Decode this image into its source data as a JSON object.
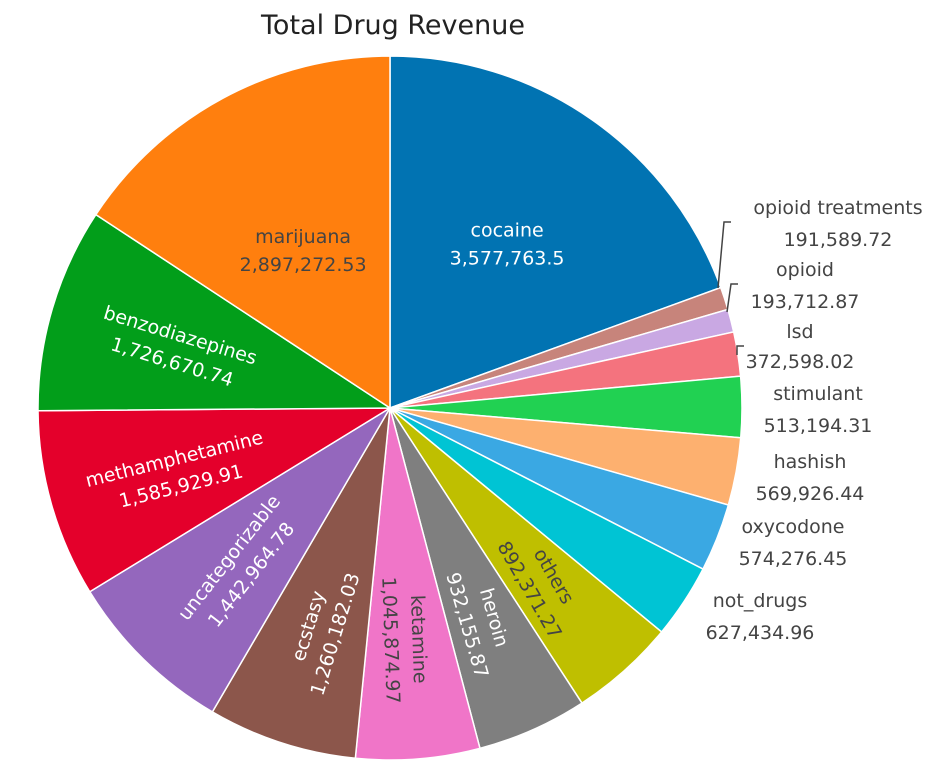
{
  "chart_data": {
    "type": "pie",
    "title": "Total Drug Revenue",
    "slices": [
      {
        "label": "cocaine",
        "value": 3577763.5,
        "value_text": "3,577,763.5",
        "color": "#0173b2",
        "text_color": "#ffffff"
      },
      {
        "label": "opioid treatments",
        "value": 191589.72,
        "value_text": "191,589.72",
        "color": "#c7847b",
        "text_color": "#444444"
      },
      {
        "label": "opioid",
        "value": 193712.87,
        "value_text": "193,712.87",
        "color": "#c9a8e3",
        "text_color": "#444444"
      },
      {
        "label": "lsd",
        "value": 372598.02,
        "value_text": "372,598.02",
        "color": "#f4737e",
        "text_color": "#444444"
      },
      {
        "label": "stimulant",
        "value": 513194.31,
        "value_text": "513,194.31",
        "color": "#21d152",
        "text_color": "#444444"
      },
      {
        "label": "hashish",
        "value": 569926.44,
        "value_text": "569,926.44",
        "color": "#fdb06f",
        "text_color": "#444444"
      },
      {
        "label": "oxycodone",
        "value": 574276.45,
        "value_text": "574,276.45",
        "color": "#3aa8e3",
        "text_color": "#444444"
      },
      {
        "label": "not_drugs",
        "value": 627434.96,
        "value_text": "627,434.96",
        "color": "#00c4d4",
        "text_color": "#444444"
      },
      {
        "label": "others",
        "value": 892371.27,
        "value_text": "892,371.27",
        "color": "#bfbf00",
        "text_color": "#444444"
      },
      {
        "label": "heroin",
        "value": 932155.87,
        "value_text": "932,155.87",
        "color": "#7f7f7f",
        "text_color": "#ffffff"
      },
      {
        "label": "ketamine",
        "value": 1045874.97,
        "value_text": "1,045,874.97",
        "color": "#f075c8",
        "text_color": "#444444"
      },
      {
        "label": "ecstasy",
        "value": 1260182.03,
        "value_text": "1,260,182.03",
        "color": "#8c564b",
        "text_color": "#ffffff"
      },
      {
        "label": "uncategorizable",
        "value": 1442964.78,
        "value_text": "1,442,964.78",
        "color": "#9467bd",
        "text_color": "#ffffff"
      },
      {
        "label": "methamphetamine",
        "value": 1585929.91,
        "value_text": "1,585,929.91",
        "color": "#e4002b",
        "text_color": "#ffffff"
      },
      {
        "label": "benzodiazepines",
        "value": 1726670.74,
        "value_text": "1,726,670.74",
        "color": "#029e1a",
        "text_color": "#ffffff"
      },
      {
        "label": "marijuana",
        "value": 2897272.53,
        "value_text": "2,897,272.53",
        "color": "#ff7f0e",
        "text_color": "#444444"
      }
    ],
    "direction": "clockwise",
    "start": "12 o'clock"
  }
}
